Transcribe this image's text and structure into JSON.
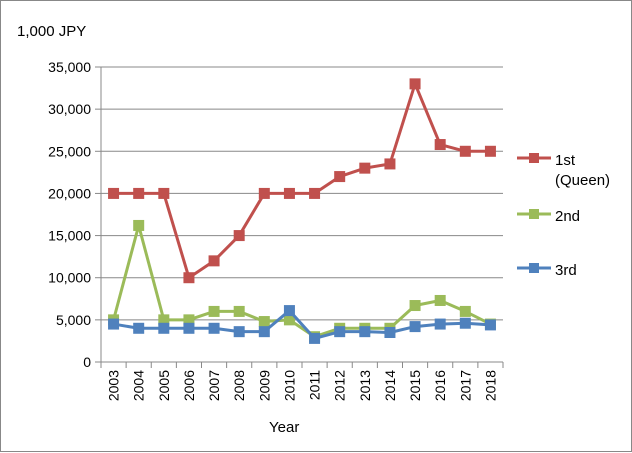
{
  "chart_data": {
    "type": "line",
    "unit_label": "1,000 JPY",
    "xlabel": "Year",
    "ylabel": "",
    "ylim": [
      0,
      35000
    ],
    "yticks": [
      "0",
      "5,000",
      "10,000",
      "15,000",
      "20,000",
      "25,000",
      "30,000",
      "35,000"
    ],
    "ytick_values": [
      0,
      5000,
      10000,
      15000,
      20000,
      25000,
      30000,
      35000
    ],
    "categories": [
      "2003",
      "2004",
      "2005",
      "2006",
      "2007",
      "2008",
      "2009",
      "2010",
      "2011",
      "2012",
      "2013",
      "2014",
      "2015",
      "2016",
      "2017",
      "2018"
    ],
    "grid": true,
    "legend_position": "right",
    "series": [
      {
        "name": "1st\n(Queen)",
        "color": "#c0504d",
        "marker": "square",
        "values": [
          20000,
          20000,
          20000,
          10000,
          12000,
          15000,
          20000,
          20000,
          20000,
          22000,
          23000,
          23500,
          33000,
          25800,
          25000,
          25000
        ]
      },
      {
        "name": "2nd",
        "color": "#9bbb59",
        "marker": "square",
        "values": [
          5000,
          16200,
          5000,
          5000,
          6000,
          6000,
          4800,
          5000,
          3000,
          4000,
          4000,
          4000,
          6700,
          7300,
          6000,
          4500
        ]
      },
      {
        "name": "3rd",
        "color": "#4f81bd",
        "marker": "square",
        "values": [
          4500,
          4000,
          4000,
          4000,
          4000,
          3600,
          3600,
          6100,
          2800,
          3600,
          3600,
          3500,
          4200,
          4500,
          4600,
          4400
        ]
      }
    ]
  }
}
